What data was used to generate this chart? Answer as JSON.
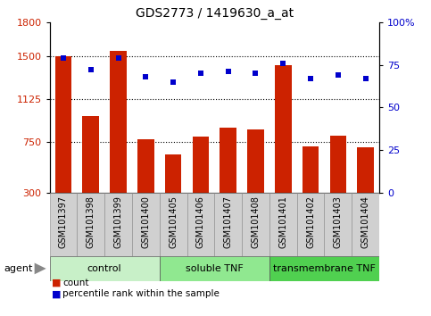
{
  "title": "GDS2773 / 1419630_a_at",
  "categories": [
    "GSM101397",
    "GSM101398",
    "GSM101399",
    "GSM101400",
    "GSM101405",
    "GSM101406",
    "GSM101407",
    "GSM101408",
    "GSM101401",
    "GSM101402",
    "GSM101403",
    "GSM101404"
  ],
  "bar_values": [
    1500,
    975,
    1545,
    770,
    640,
    790,
    870,
    855,
    1420,
    705,
    800,
    700
  ],
  "percentile_values": [
    79,
    72,
    79,
    68,
    65,
    70,
    71,
    70,
    76,
    67,
    69,
    67
  ],
  "groups": [
    {
      "label": "control",
      "start": 0,
      "end": 3,
      "color": "#c8f0c8"
    },
    {
      "label": "soluble TNF",
      "start": 4,
      "end": 7,
      "color": "#90e890"
    },
    {
      "label": "transmembrane TNF",
      "start": 8,
      "end": 11,
      "color": "#50d050"
    }
  ],
  "ylim_left": [
    300,
    1800
  ],
  "ylim_right": [
    0,
    100
  ],
  "yticks_left": [
    300,
    750,
    1125,
    1500,
    1800
  ],
  "yticks_right": [
    0,
    25,
    50,
    75,
    100
  ],
  "ytick_right_labels": [
    "0",
    "25",
    "50",
    "75",
    "100%"
  ],
  "hlines": [
    750,
    1125,
    1500
  ],
  "bar_color": "#cc2200",
  "dot_color": "#0000cc",
  "bar_width": 0.6,
  "agent_label": "agent",
  "legend_count": "count",
  "legend_percentile": "percentile rank within the sample",
  "tick_bg_color": "#d0d0d0",
  "title_fontsize": 10,
  "axis_fontsize": 8,
  "label_fontsize": 7,
  "group_fontsize": 8
}
